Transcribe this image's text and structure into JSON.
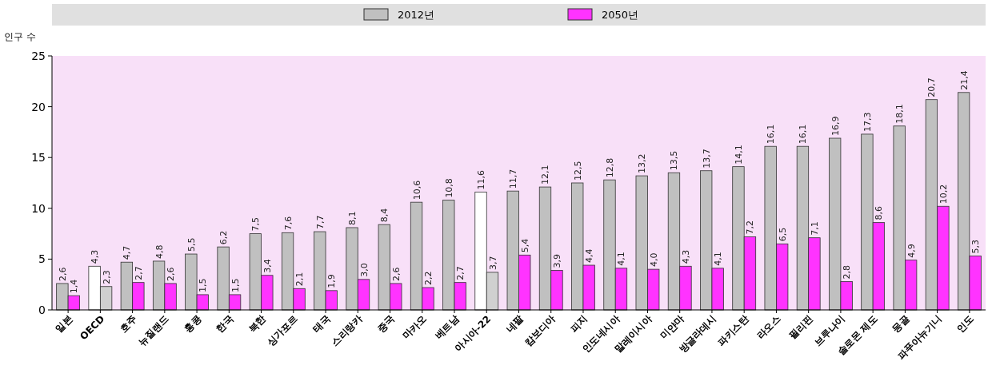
{
  "chart_data": {
    "type": "bar",
    "ylabel": "인구 수",
    "categories": [
      "일본",
      "OECD",
      "호주",
      "뉴질랜드",
      "홍콩",
      "한국",
      "북한",
      "싱가포르",
      "태국",
      "스리랑카",
      "중국",
      "마카오",
      "베트남",
      "아시아-22",
      "네팔",
      "캄보디아",
      "피지",
      "인도네시아",
      "말레이시아",
      "미얀마",
      "방글라데시",
      "파키스탄",
      "라오스",
      "필리핀",
      "브루나이",
      "솔로몬 제도",
      "몽골",
      "파푸아뉴기니",
      "인도"
    ],
    "series": [
      {
        "name": "2012년",
        "color": "#c0c0c0",
        "colors": [
          "#c0c0c0",
          "#ffffff",
          "#c0c0c0",
          "#c0c0c0",
          "#c0c0c0",
          "#c0c0c0",
          "#c0c0c0",
          "#c0c0c0",
          "#c0c0c0",
          "#c0c0c0",
          "#c0c0c0",
          "#c0c0c0",
          "#c0c0c0",
          "#ffffff",
          "#c0c0c0",
          "#c0c0c0",
          "#c0c0c0",
          "#c0c0c0",
          "#c0c0c0",
          "#c0c0c0",
          "#c0c0c0",
          "#c0c0c0",
          "#c0c0c0",
          "#c0c0c0",
          "#c0c0c0",
          "#c0c0c0",
          "#c0c0c0",
          "#c0c0c0",
          "#c0c0c0"
        ],
        "values": [
          2.6,
          4.3,
          4.7,
          4.8,
          5.5,
          6.2,
          7.5,
          7.6,
          7.7,
          8.1,
          8.4,
          10.6,
          10.8,
          11.6,
          11.7,
          12.1,
          12.5,
          12.8,
          13.2,
          13.5,
          13.7,
          14.1,
          16.1,
          16.1,
          16.9,
          17.3,
          18.1,
          20.7,
          21.4
        ],
        "value_labels": [
          "2,6",
          "4,3",
          "4,7",
          "4,8",
          "5,5",
          "6,2",
          "7,5",
          "7,6",
          "7,7",
          "8,1",
          "8,4",
          "10,6",
          "10,8",
          "11,6",
          "11,7",
          "12,1",
          "12,5",
          "12,8",
          "13,2",
          "13,5",
          "13,7",
          "14,1",
          "16,1",
          "16,1",
          "16,9",
          "17,3",
          "18,1",
          "20,7",
          "21,4"
        ]
      },
      {
        "name": "2050년",
        "color": "#ff33ff",
        "colors": [
          "#ff33ff",
          "#d0d0d0",
          "#ff33ff",
          "#ff33ff",
          "#ff33ff",
          "#ff33ff",
          "#ff33ff",
          "#ff33ff",
          "#ff33ff",
          "#ff33ff",
          "#ff33ff",
          "#ff33ff",
          "#ff33ff",
          "#d0d0d0",
          "#ff33ff",
          "#ff33ff",
          "#ff33ff",
          "#ff33ff",
          "#ff33ff",
          "#ff33ff",
          "#ff33ff",
          "#ff33ff",
          "#ff33ff",
          "#ff33ff",
          "#ff33ff",
          "#ff33ff",
          "#ff33ff",
          "#ff33ff",
          "#ff33ff"
        ],
        "values": [
          1.4,
          2.3,
          2.7,
          2.6,
          1.5,
          1.5,
          3.4,
          2.1,
          1.9,
          3.0,
          2.6,
          2.2,
          2.7,
          3.7,
          5.4,
          3.9,
          4.4,
          4.1,
          4.0,
          4.3,
          4.1,
          7.2,
          6.5,
          7.1,
          2.8,
          8.6,
          4.9,
          10.2,
          5.3
        ],
        "value_labels": [
          "1,4",
          "2,3",
          "2,7",
          "2,6",
          "1,5",
          "1,5",
          "3,4",
          "2,1",
          "1,9",
          "3,0",
          "2,6",
          "2,2",
          "2,7",
          "3,7",
          "5,4",
          "3,9",
          "4,4",
          "4,1",
          "4,0",
          "4,3",
          "4,1",
          "7,2",
          "6,5",
          "7,1",
          "2,8",
          "8,6",
          "4,9",
          "10,2",
          "5,3"
        ]
      }
    ],
    "ylim": [
      0,
      25
    ],
    "yticks": [
      0,
      5,
      10,
      15,
      20,
      25
    ],
    "grid": false,
    "legend": "top"
  }
}
